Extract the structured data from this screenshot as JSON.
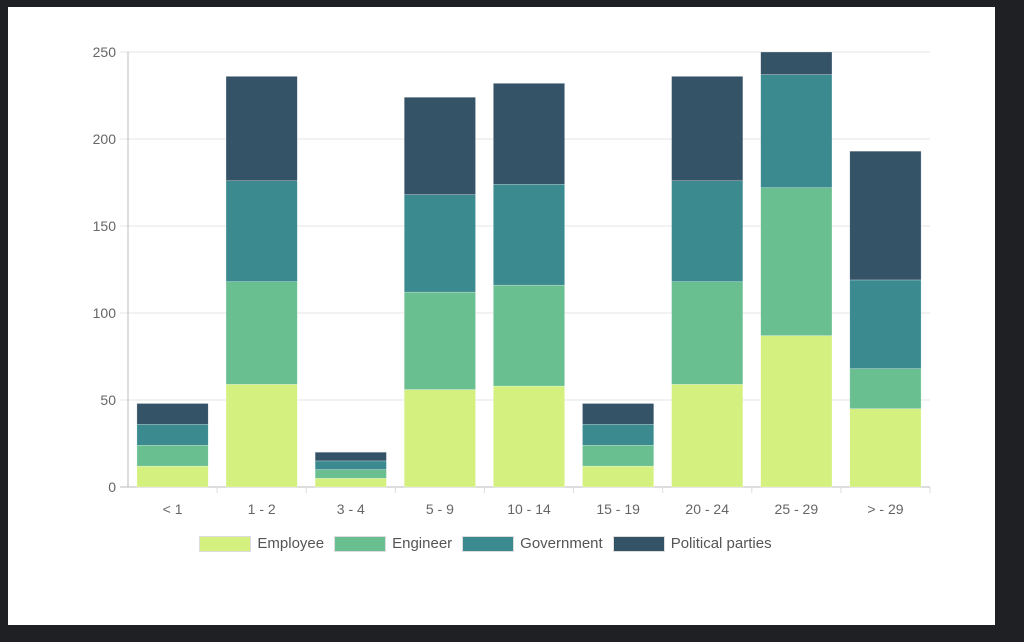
{
  "chart_data": {
    "type": "bar",
    "stacked": true,
    "categories": [
      "<  1",
      "1 - 2",
      "3 - 4",
      "5 - 9",
      "10 - 14",
      "15 - 19",
      "20 - 24",
      "25 - 29",
      "> - 29"
    ],
    "series": [
      {
        "name": "Employee",
        "color": "#d4f07f",
        "values": [
          12,
          59,
          5,
          56,
          58,
          12,
          59,
          87,
          45
        ]
      },
      {
        "name": "Engineer",
        "color": "#6abf91",
        "values": [
          12,
          59,
          5,
          56,
          58,
          12,
          59,
          85,
          23
        ]
      },
      {
        "name": "Government",
        "color": "#3a8a8f",
        "values": [
          12,
          58,
          5,
          56,
          58,
          12,
          58,
          65,
          51
        ]
      },
      {
        "name": "Political parties",
        "color": "#355366",
        "values": [
          12,
          60,
          5,
          56,
          58,
          12,
          60,
          13,
          74
        ]
      }
    ],
    "yticks": [
      0,
      50,
      100,
      150,
      200,
      250
    ],
    "ylim": [
      0,
      250
    ],
    "grid": true,
    "legend": "bottom"
  }
}
